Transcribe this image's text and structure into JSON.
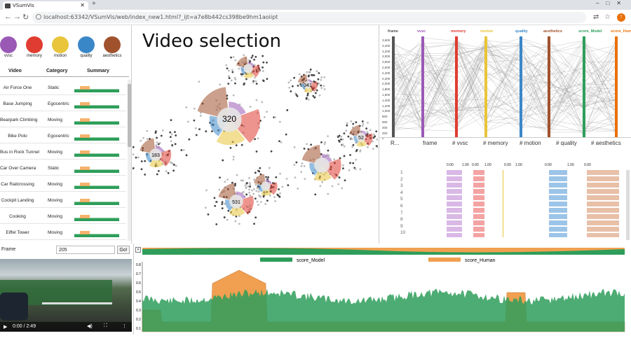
{
  "browser": {
    "tab_title": "VSumVis",
    "url": "localhost:63342/VSumVis/web/index_new1.html?_ijt=a7e8b442cs398be9hm1aoiipt"
  },
  "legend": [
    {
      "label": "vvsc",
      "color": "#9b59b6"
    },
    {
      "label": "memory",
      "color": "#e03c31"
    },
    {
      "label": "motion",
      "color": "#e8c53a"
    },
    {
      "label": "quality",
      "color": "#3a87c8"
    },
    {
      "label": "aesthetics",
      "color": "#a0522d"
    }
  ],
  "video_table": {
    "headers": [
      "Video",
      "Category",
      "Summary"
    ],
    "rows": [
      {
        "name": "Air Force One",
        "category": "Static"
      },
      {
        "name": "Base Jumping",
        "category": "Egocentric"
      },
      {
        "name": "Bearpark Climbing",
        "category": "Moving"
      },
      {
        "name": "Bike Polo",
        "category": "Egocentric"
      },
      {
        "name": "Bus in Rock Tunnel",
        "category": "Moving"
      },
      {
        "name": "Car Over Camera",
        "category": "Static"
      },
      {
        "name": "Car Railcrossing",
        "category": "Moving"
      },
      {
        "name": "Cockpit Landing",
        "category": "Moving"
      },
      {
        "name": "Cooking",
        "category": "Moving"
      },
      {
        "name": "Eiffel Tower",
        "category": "Moving"
      }
    ]
  },
  "center": {
    "title": "Video selection",
    "clusters": [
      {
        "label": "320"
      },
      {
        "label": "531"
      },
      {
        "label": "183"
      },
      {
        "label": "52"
      },
      {
        "label": "341"
      }
    ]
  },
  "parallel": {
    "axes": [
      {
        "name": "frame",
        "color": "#555"
      },
      {
        "name": "vvsc",
        "color": "#9b59b6"
      },
      {
        "name": "memory",
        "color": "#e03c31"
      },
      {
        "name": "motion",
        "color": "#e8c53a"
      },
      {
        "name": "quality",
        "color": "#3a87c8"
      },
      {
        "name": "aesthetics",
        "color": "#a0522d"
      },
      {
        "name": "score_Model",
        "color": "#2e9e5a"
      },
      {
        "name": "score_Human",
        "color": "#e8710a"
      }
    ],
    "frame_ticks": [
      "3,600",
      "3,400",
      "3,200",
      "3,000",
      "2,800",
      "2,600",
      "2,400",
      "2,200",
      "2,000",
      "1,800",
      "1,600",
      "1,400",
      "1,200",
      "1,000",
      "800",
      "600",
      "400",
      "200",
      "0"
    ]
  },
  "grid": {
    "columns": [
      "R...",
      "frame",
      "# vvsc",
      "# memory",
      "# motion",
      "# quality",
      "# aesthetics"
    ],
    "range_labels": [
      "0.00",
      "1.00",
      "0.00",
      "1.00",
      "0.00",
      "1.00",
      "0.00",
      "1.00",
      "0.00"
    ],
    "row_ids": [
      "1",
      "2",
      "3",
      "4",
      "5",
      "6",
      "7",
      "8",
      "9",
      "10"
    ]
  },
  "player": {
    "frame_label": "Frame",
    "frame_value": "205",
    "go_label": "Go!",
    "time": "0:00 / 2:49"
  },
  "timeline": {
    "series": [
      {
        "name": "score_Model",
        "color": "#2e9e5a"
      },
      {
        "name": "score_Human",
        "color": "#f0a050"
      }
    ],
    "y_ticks": [
      "0.8",
      "0.7",
      "0.6",
      "0.5",
      "0.4",
      "0.3",
      "0.2",
      "0.1"
    ]
  }
}
